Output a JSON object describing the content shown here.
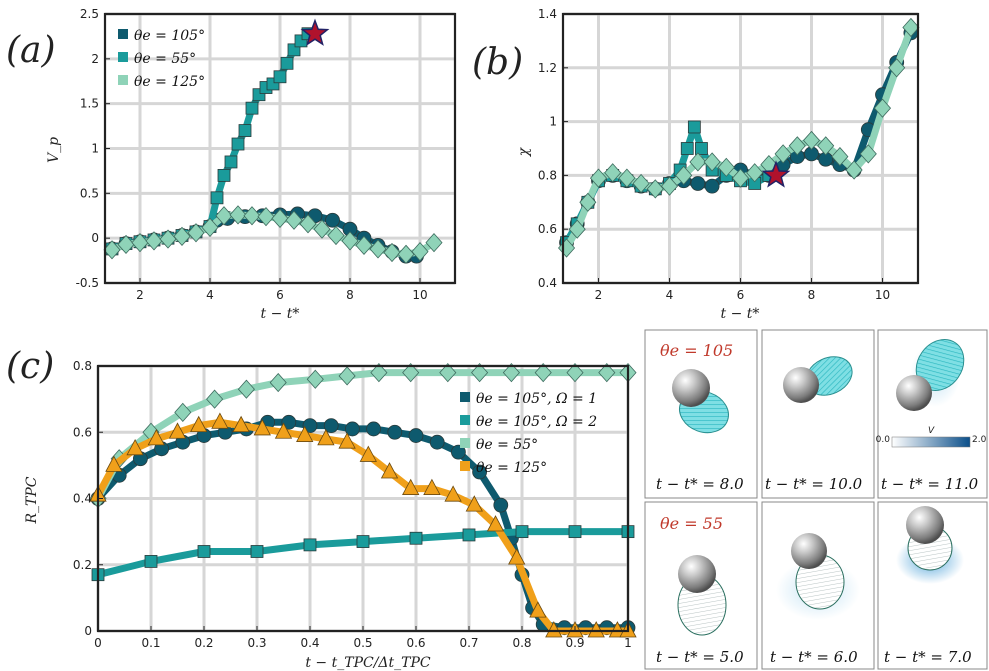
{
  "panel_labels": [
    "(a)",
    "(b)",
    "(c)"
  ],
  "colors": {
    "dark_teal": "#0e5a6e",
    "mid_teal": "#1a9b9b",
    "light_teal": "#8fd3b8",
    "orange": "#f0a01a",
    "star": "#b0122c",
    "star_edge": "#222266",
    "snap_red": "#c0392b",
    "cyan_shade": "#5fd2d8"
  },
  "chart_data": [
    {
      "id": "a",
      "type": "line",
      "xlabel": "t − t*",
      "ylabel": "V_p",
      "xlim": [
        1,
        11
      ],
      "ylim": [
        -0.5,
        2.5
      ],
      "xticks": [
        2,
        4,
        6,
        8,
        10
      ],
      "yticks": [
        -0.5,
        0,
        0.5,
        1,
        1.5,
        2,
        2.5
      ],
      "grid": true,
      "legend_position": "top-left",
      "series": [
        {
          "name": "θe = 105°",
          "color": "#0e5a6e",
          "marker": "circle",
          "x": [
            1.2,
            1.6,
            2.0,
            2.4,
            2.8,
            3.2,
            3.6,
            4.0,
            4.2,
            4.5,
            5.0,
            5.5,
            6.0,
            6.5,
            7.0,
            7.5,
            8.0,
            8.4,
            8.8,
            9.2,
            9.6,
            9.9
          ],
          "y": [
            -0.12,
            -0.06,
            -0.04,
            -0.02,
            0.0,
            0.03,
            0.07,
            0.13,
            0.2,
            0.22,
            0.24,
            0.25,
            0.26,
            0.27,
            0.25,
            0.2,
            0.1,
            0.0,
            -0.08,
            -0.15,
            -0.2,
            -0.2
          ]
        },
        {
          "name": "θe = 55°",
          "color": "#1a9b9b",
          "marker": "square",
          "x": [
            1.2,
            1.6,
            2.0,
            2.4,
            2.8,
            3.2,
            3.6,
            4.0,
            4.2,
            4.4,
            4.6,
            4.8,
            5.0,
            5.2,
            5.4,
            5.6,
            5.8,
            6.0,
            6.2,
            6.4,
            6.6,
            6.8
          ],
          "y": [
            -0.12,
            -0.06,
            -0.04,
            -0.02,
            0.0,
            0.03,
            0.07,
            0.13,
            0.45,
            0.7,
            0.85,
            1.05,
            1.2,
            1.45,
            1.6,
            1.68,
            1.72,
            1.8,
            1.95,
            2.1,
            2.2,
            2.28
          ]
        },
        {
          "name": "θe = 125°",
          "color": "#8fd3b8",
          "marker": "diamond",
          "x": [
            1.2,
            1.6,
            2.0,
            2.4,
            2.8,
            3.2,
            3.6,
            4.0,
            4.4,
            4.8,
            5.2,
            5.6,
            6.0,
            6.4,
            6.8,
            7.2,
            7.6,
            8.0,
            8.4,
            8.8,
            9.2,
            9.6,
            10.0,
            10.4
          ],
          "y": [
            -0.13,
            -0.07,
            -0.05,
            -0.03,
            -0.01,
            0.02,
            0.06,
            0.12,
            0.25,
            0.26,
            0.25,
            0.24,
            0.22,
            0.2,
            0.16,
            0.1,
            0.03,
            -0.03,
            -0.08,
            -0.12,
            -0.16,
            -0.18,
            -0.15,
            -0.05
          ]
        }
      ],
      "star": {
        "x": 7.0,
        "y": 2.28
      }
    },
    {
      "id": "b",
      "type": "line",
      "xlabel": "t − t*",
      "ylabel": "χ",
      "xlim": [
        1,
        11
      ],
      "ylim": [
        0.4,
        1.4
      ],
      "xticks": [
        2,
        4,
        6,
        8,
        10
      ],
      "yticks": [
        0.4,
        0.6,
        0.8,
        1.0,
        1.2,
        1.4
      ],
      "grid": true,
      "series": [
        {
          "name": "θe = 105°",
          "color": "#0e5a6e",
          "marker": "circle",
          "x": [
            1.1,
            1.4,
            1.7,
            2.0,
            2.4,
            2.8,
            3.2,
            3.6,
            4.0,
            4.4,
            4.8,
            5.2,
            5.6,
            6.0,
            6.4,
            6.8,
            7.2,
            7.6,
            8.0,
            8.4,
            8.8,
            9.2,
            9.6,
            10.0,
            10.4,
            10.8
          ],
          "y": [
            0.55,
            0.62,
            0.7,
            0.78,
            0.8,
            0.78,
            0.76,
            0.75,
            0.77,
            0.78,
            0.77,
            0.76,
            0.8,
            0.82,
            0.8,
            0.8,
            0.84,
            0.87,
            0.88,
            0.86,
            0.84,
            0.82,
            0.97,
            1.1,
            1.22,
            1.33
          ]
        },
        {
          "name": "θe = 55°",
          "color": "#1a9b9b",
          "marker": "square",
          "x": [
            1.1,
            1.4,
            1.7,
            2.0,
            2.4,
            2.8,
            3.2,
            3.6,
            4.0,
            4.3,
            4.5,
            4.7,
            4.9,
            5.2,
            5.6,
            6.0,
            6.4,
            6.8
          ],
          "y": [
            0.55,
            0.62,
            0.7,
            0.78,
            0.8,
            0.78,
            0.76,
            0.75,
            0.77,
            0.82,
            0.9,
            0.98,
            0.9,
            0.82,
            0.8,
            0.78,
            0.77,
            0.8
          ]
        },
        {
          "name": "θe = 125°",
          "color": "#8fd3b8",
          "marker": "diamond",
          "x": [
            1.1,
            1.4,
            1.7,
            2.0,
            2.4,
            2.8,
            3.2,
            3.6,
            4.0,
            4.4,
            4.8,
            5.2,
            5.6,
            6.0,
            6.4,
            6.8,
            7.2,
            7.6,
            8.0,
            8.4,
            8.8,
            9.2,
            9.6,
            10.0,
            10.4,
            10.8
          ],
          "y": [
            0.53,
            0.6,
            0.7,
            0.79,
            0.81,
            0.79,
            0.77,
            0.75,
            0.76,
            0.8,
            0.85,
            0.85,
            0.83,
            0.79,
            0.81,
            0.84,
            0.88,
            0.91,
            0.93,
            0.91,
            0.87,
            0.82,
            0.88,
            1.05,
            1.2,
            1.35
          ]
        }
      ],
      "star": {
        "x": 7.0,
        "y": 0.8
      }
    },
    {
      "id": "c",
      "type": "line",
      "xlabel": "t − t_TPC/Δt_TPC",
      "ylabel": "R_TPC",
      "xlim": [
        0,
        1
      ],
      "ylim": [
        0,
        0.8
      ],
      "xticks": [
        0,
        0.1,
        0.2,
        0.3,
        0.4,
        0.5,
        0.6,
        0.7,
        0.8,
        0.9,
        1
      ],
      "yticks": [
        0,
        0.2,
        0.4,
        0.6,
        0.8
      ],
      "grid": true,
      "legend_position": "top-right",
      "series": [
        {
          "name": "θe = 105°, Ω = 1",
          "color": "#0e5a6e",
          "marker": "circle",
          "x": [
            0.0,
            0.04,
            0.08,
            0.12,
            0.16,
            0.2,
            0.24,
            0.28,
            0.32,
            0.36,
            0.4,
            0.44,
            0.48,
            0.52,
            0.56,
            0.6,
            0.64,
            0.68,
            0.72,
            0.76,
            0.78,
            0.8,
            0.82,
            0.84,
            0.88,
            0.92,
            0.96,
            1.0
          ],
          "y": [
            0.4,
            0.47,
            0.52,
            0.55,
            0.57,
            0.59,
            0.6,
            0.61,
            0.63,
            0.63,
            0.62,
            0.62,
            0.61,
            0.61,
            0.6,
            0.59,
            0.57,
            0.54,
            0.48,
            0.38,
            0.28,
            0.17,
            0.07,
            0.02,
            0.01,
            0.01,
            0.01,
            0.01
          ]
        },
        {
          "name": "θe = 105°, Ω = 2",
          "color": "#1a9b9b",
          "marker": "square",
          "x": [
            0.0,
            0.1,
            0.2,
            0.3,
            0.4,
            0.5,
            0.6,
            0.7,
            0.8,
            0.9,
            1.0
          ],
          "y": [
            0.17,
            0.21,
            0.24,
            0.24,
            0.26,
            0.27,
            0.28,
            0.29,
            0.3,
            0.3,
            0.3
          ]
        },
        {
          "name": "θe = 55°",
          "color": "#8fd3b8",
          "marker": "diamond",
          "x": [
            0.0,
            0.04,
            0.1,
            0.16,
            0.22,
            0.28,
            0.34,
            0.41,
            0.47,
            0.53,
            0.59,
            0.66,
            0.72,
            0.78,
            0.84,
            0.9,
            0.96,
            1.0
          ],
          "y": [
            0.4,
            0.52,
            0.6,
            0.66,
            0.7,
            0.73,
            0.75,
            0.76,
            0.77,
            0.78,
            0.78,
            0.78,
            0.78,
            0.78,
            0.78,
            0.78,
            0.78,
            0.78
          ]
        },
        {
          "name": "θe = 125°",
          "color": "#f0a01a",
          "marker": "triangle",
          "x": [
            0.0,
            0.03,
            0.07,
            0.11,
            0.15,
            0.19,
            0.23,
            0.27,
            0.31,
            0.35,
            0.39,
            0.43,
            0.47,
            0.51,
            0.55,
            0.59,
            0.63,
            0.67,
            0.71,
            0.75,
            0.79,
            0.83,
            0.86,
            0.9,
            0.94,
            0.98,
            1.0
          ],
          "y": [
            0.41,
            0.5,
            0.55,
            0.58,
            0.6,
            0.62,
            0.63,
            0.62,
            0.61,
            0.6,
            0.59,
            0.58,
            0.57,
            0.53,
            0.48,
            0.43,
            0.43,
            0.41,
            0.38,
            0.32,
            0.22,
            0.06,
            0.0,
            0.0,
            0.0,
            0.0,
            0.0
          ]
        }
      ]
    }
  ],
  "snapshots": {
    "row1_title": "θe = 105",
    "row2_title": "θe = 55",
    "colorbar": {
      "label": "V",
      "min": "0.0",
      "max": "2.0"
    },
    "captions": [
      "t − t* = 8.0",
      "t − t* = 10.0",
      "t − t* = 11.0",
      "t − t* = 5.0",
      "t − t* = 6.0",
      "t − t* = 7.0"
    ]
  }
}
